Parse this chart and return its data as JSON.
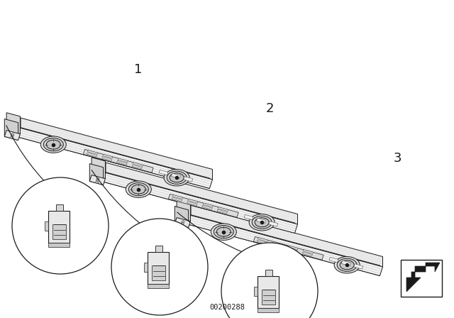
{
  "bg_color": "#ffffff",
  "line_color": "#1a1a1a",
  "diagram_code": "00200288",
  "label_1": "1",
  "label_2": "2",
  "label_3": "3",
  "figsize": [
    6.4,
    4.48
  ],
  "dpi": 100
}
